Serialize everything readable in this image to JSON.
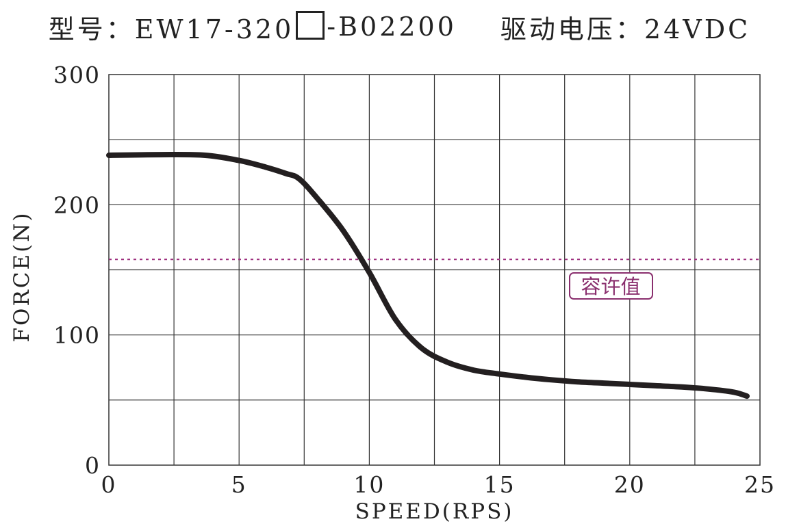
{
  "title": {
    "model_prefix": "型号：EW17-320",
    "model_suffix": "-B02200",
    "voltage": "驱动电压：24VDC"
  },
  "chart_data": {
    "type": "line",
    "xlabel": "SPEED(RPS)",
    "ylabel": "FORCE(N)",
    "xlim": [
      0,
      25
    ],
    "ylim": [
      0,
      300
    ],
    "x_ticks": [
      0,
      5,
      10,
      15,
      20,
      25
    ],
    "y_ticks": [
      0,
      100,
      200,
      300
    ],
    "grid": true,
    "series": [
      {
        "color": "#231f20",
        "x": [
          0,
          2,
          3.7,
          5,
          6,
          6.8,
          7.3,
          8,
          9,
          10,
          11,
          12,
          13,
          14,
          15,
          16,
          17,
          18,
          19,
          20,
          21,
          22,
          23,
          24,
          24.5
        ],
        "y": [
          238,
          238.5,
          238,
          234,
          229,
          224,
          220,
          205,
          180,
          148,
          112,
          90,
          79,
          73,
          70,
          67.5,
          65.5,
          64,
          63,
          62,
          61,
          60,
          58.5,
          56,
          53
        ]
      }
    ],
    "reference_line": {
      "y": 158,
      "color": "#9c2c7c",
      "style": "dashed"
    },
    "annotation": {
      "text": "容许值",
      "color": "#8a2f6e"
    }
  }
}
